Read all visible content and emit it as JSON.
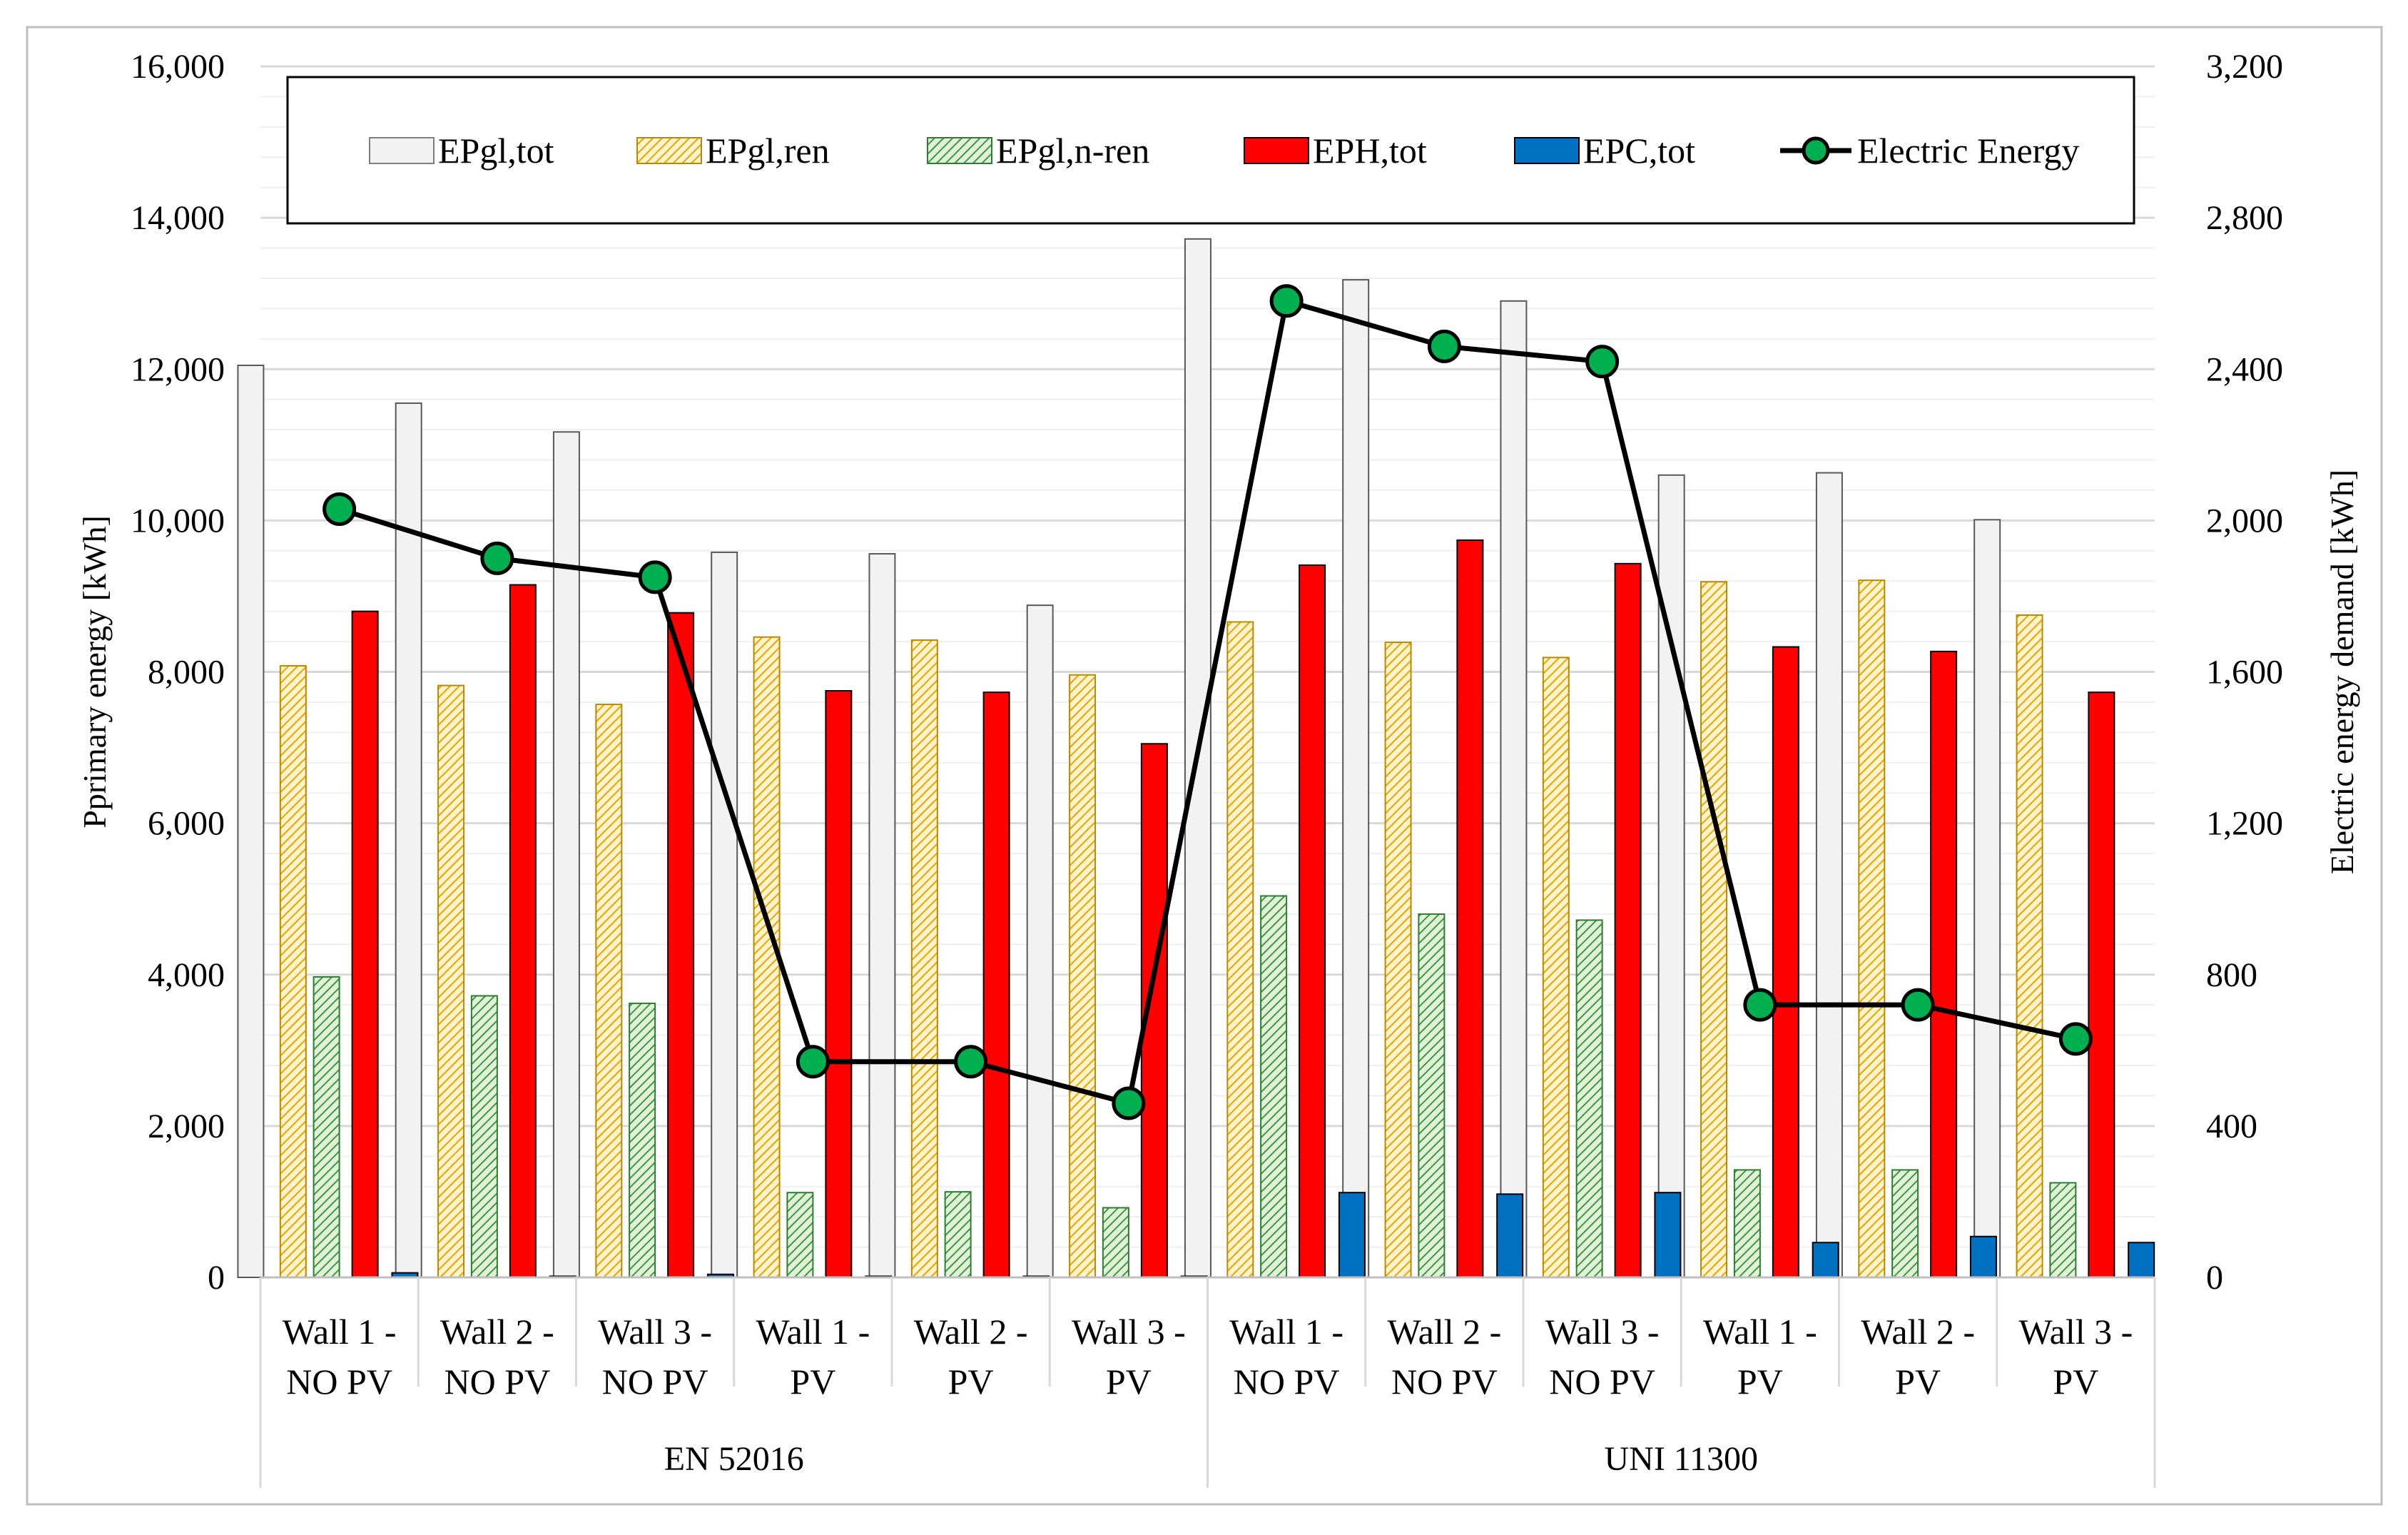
{
  "chart_data": {
    "type": "bar",
    "title": "",
    "ylabel": "Pprimary energy [kWh]",
    "y2label": "Electric energy demand [kWh]",
    "ylim": [
      0,
      16000
    ],
    "y2lim": [
      0,
      3200
    ],
    "yticks": [
      "0",
      "2,000",
      "4,000",
      "6,000",
      "8,000",
      "10,000",
      "12,000",
      "14,000",
      "16,000"
    ],
    "y2ticks": [
      "0",
      "400",
      "800",
      "1,200",
      "1,600",
      "2,000",
      "2,400",
      "2,800",
      "3,200"
    ],
    "categories": [
      [
        "Wall 1 -",
        "NO PV"
      ],
      [
        "Wall 2 -",
        "NO PV"
      ],
      [
        "Wall 3 -",
        "NO PV"
      ],
      [
        "Wall 1 -",
        "PV"
      ],
      [
        "Wall 2 -",
        "PV"
      ],
      [
        "Wall 3 -",
        "PV"
      ],
      [
        "Wall 1 -",
        "NO PV"
      ],
      [
        "Wall 2 -",
        "NO PV"
      ],
      [
        "Wall 3 -",
        "NO PV"
      ],
      [
        "Wall 1 -",
        "PV"
      ],
      [
        "Wall 2 -",
        "PV"
      ],
      [
        "Wall 3 -",
        "PV"
      ]
    ],
    "groups": [
      {
        "label": "EN 52016",
        "count": 6
      },
      {
        "label": "UNI 11300",
        "count": 6
      }
    ],
    "series": [
      {
        "name": "EPgl,tot",
        "style": "solid",
        "color": "#f2f2f2",
        "values": [
          12050,
          11550,
          11170,
          9580,
          9560,
          8880,
          13720,
          13180,
          12900,
          10600,
          10630,
          10010
        ]
      },
      {
        "name": "EPgl,ren",
        "style": "hatch-yellow",
        "color": "#ffd966",
        "values": [
          8080,
          7820,
          7570,
          8460,
          8420,
          7960,
          8660,
          8390,
          8190,
          9190,
          9210,
          8750
        ]
      },
      {
        "name": "EPgl,n-ren",
        "style": "hatch-green",
        "color": "#70ad47",
        "values": [
          3970,
          3720,
          3620,
          1120,
          1130,
          920,
          5040,
          4800,
          4720,
          1420,
          1420,
          1250
        ]
      },
      {
        "name": "EPH,tot",
        "style": "solid",
        "color": "#ff0000",
        "values": [
          8800,
          9150,
          8780,
          7750,
          7730,
          7050,
          9410,
          9740,
          9430,
          8330,
          8270,
          7730
        ]
      },
      {
        "name": "EPC,tot",
        "style": "solid",
        "color": "#0070c0",
        "values": [
          60,
          15,
          40,
          15,
          15,
          15,
          1120,
          1100,
          1120,
          460,
          540,
          460
        ]
      }
    ],
    "line_series": {
      "name": "Electric Energy",
      "axis": "secondary",
      "color": "#000000",
      "marker_color": "#00b050",
      "values": [
        2030,
        1900,
        1850,
        570,
        570,
        460,
        2580,
        2460,
        2420,
        720,
        720,
        630
      ]
    },
    "legend_position": "top"
  }
}
